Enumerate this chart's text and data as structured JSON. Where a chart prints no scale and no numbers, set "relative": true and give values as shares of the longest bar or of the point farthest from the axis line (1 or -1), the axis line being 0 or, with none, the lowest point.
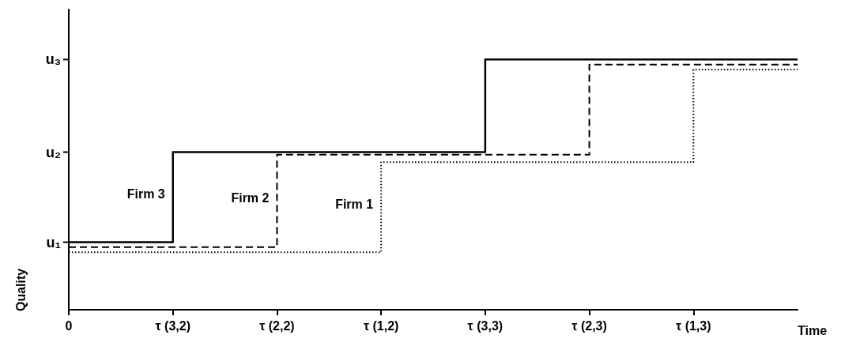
{
  "chart_data": {
    "type": "step",
    "xlabel": "Time",
    "ylabel": "Quality",
    "relative": true,
    "categories": [
      "0",
      "τ (3,2)",
      "τ (2,2)",
      "τ (1,2)",
      "τ (3,3)",
      "τ (2,3)",
      "τ (1,3)",
      null
    ],
    "annotations": [
      "u₁",
      "u₂",
      "u₃"
    ],
    "series": [
      {
        "name": "Firm 3",
        "color": "#000000",
        "line_style": "solid",
        "values": [
          0.27,
          0.63,
          0.63,
          0.63,
          1,
          1,
          1,
          1
        ]
      },
      {
        "name": "Firm 2",
        "color": "#000000",
        "line_style": "dashed",
        "values": [
          0.25,
          0.25,
          0.62,
          0.62,
          0.62,
          0.98,
          0.98,
          0.98
        ]
      },
      {
        "name": "Firm 1",
        "color": "#000000",
        "line_style": "dotted",
        "values": [
          0.23,
          0.23,
          0.23,
          0.59,
          0.59,
          0.59,
          0.96,
          0.96
        ]
      }
    ],
    "marker": "none",
    "legend": false,
    "grid": false
  }
}
